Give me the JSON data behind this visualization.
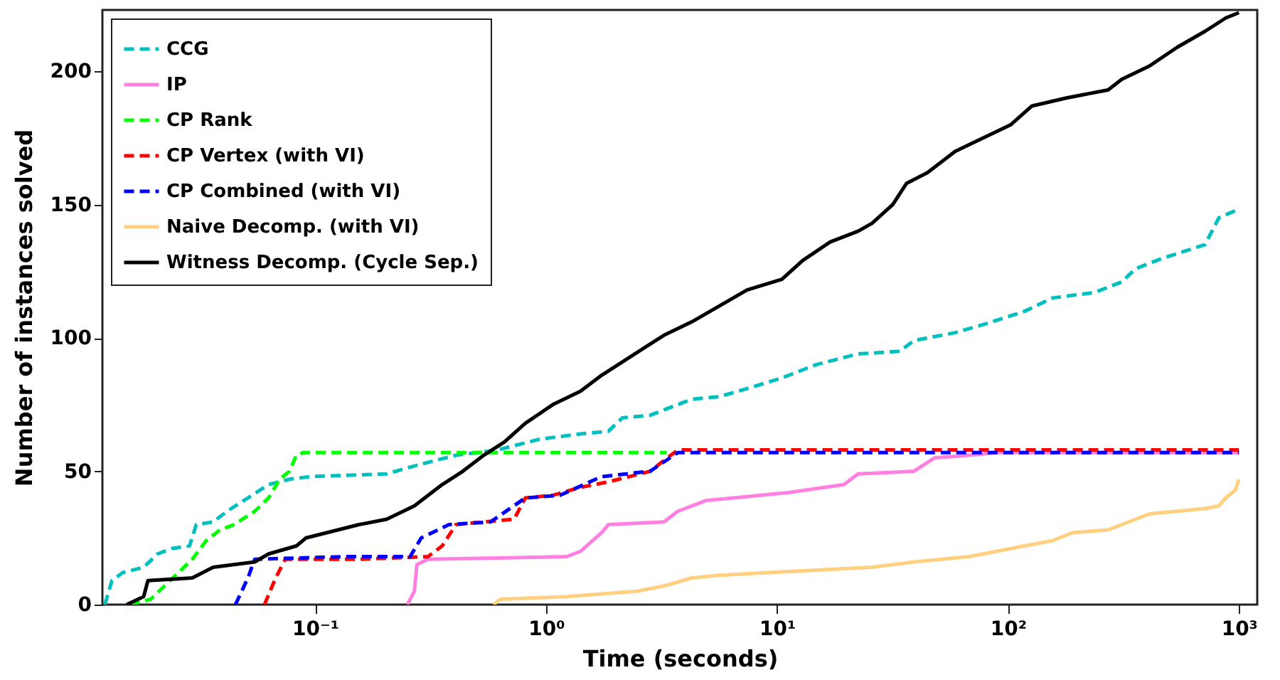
{
  "chart_data": {
    "type": "line",
    "xlabel": "Time (seconds)",
    "ylabel": "Number of instances solved",
    "log": "x",
    "xlim": [
      0.012,
      1200
    ],
    "ylim": [
      0,
      223
    ],
    "xticks": [
      {
        "value": 0.1,
        "label": "10⁻¹"
      },
      {
        "value": 1,
        "label": "10⁰"
      },
      {
        "value": 10,
        "label": "10¹"
      },
      {
        "value": 100,
        "label": "10²"
      },
      {
        "value": 1000,
        "label": "10³"
      }
    ],
    "yticks": [
      0,
      50,
      100,
      150,
      200
    ],
    "grid": false,
    "legend": "top left",
    "marker": "none",
    "series": [
      {
        "name": "CCG",
        "color": "#00bfbf",
        "line_style": "dashed",
        "x": [
          0.0123,
          0.0132,
          0.0147,
          0.0181,
          0.0208,
          0.0239,
          0.0286,
          0.0306,
          0.0362,
          0.0416,
          0.0512,
          0.0629,
          0.0774,
          0.0953,
          0.204,
          0.269,
          0.407,
          0.616,
          0.933,
          1.41,
          1.86,
          2.14,
          2.82,
          4.27,
          5.63,
          7.42,
          10.5,
          14.8,
          22.4,
          34.0,
          39.1,
          59.1,
          78.0,
          118,
          156,
          236,
          311,
          357,
          471,
          713,
          818,
          980
        ],
        "values": [
          0,
          9,
          12,
          14,
          19,
          21,
          22,
          30,
          31,
          35,
          40,
          45,
          47,
          48,
          49,
          52,
          56,
          58,
          62,
          64,
          65,
          70,
          71,
          77,
          78,
          81,
          85,
          90,
          94,
          95,
          99,
          102,
          105,
          110,
          115,
          117,
          121,
          126,
          130,
          135,
          145,
          148
        ]
      },
      {
        "name": "IP",
        "color": "#ff80e0",
        "line_style": "solid",
        "x": [
          0.251,
          0.269,
          0.276,
          0.308,
          1.23,
          1.41,
          1.74,
          1.86,
          3.24,
          3.72,
          4.91,
          11.2,
          19.5,
          22.4,
          39.1,
          48.0,
          67.9,
          89.5,
          1000
        ],
        "values": [
          0,
          5,
          15,
          17,
          18,
          20,
          27,
          30,
          31,
          35,
          39,
          42,
          45,
          49,
          50,
          55,
          56,
          57,
          57
        ]
      },
      {
        "name": "CP Rank",
        "color": "#00ff00",
        "line_style": "dashed",
        "x": [
          0.0158,
          0.0194,
          0.0223,
          0.0256,
          0.0294,
          0.0338,
          0.0387,
          0.0446,
          0.0548,
          0.0629,
          0.0703,
          0.0774,
          0.083,
          0.0889,
          3.33
        ],
        "values": [
          0,
          2,
          7,
          12,
          17,
          24,
          28,
          30,
          35,
          40,
          47,
          50,
          56,
          57,
          57
        ]
      },
      {
        "name": "CP Vertex (with VI)",
        "color": "#ff0000",
        "line_style": "dashed",
        "x": [
          0.0604,
          0.0675,
          0.0743,
          0.155,
          0.308,
          0.355,
          0.407,
          0.537,
          0.727,
          0.813,
          1.07,
          1.41,
          1.86,
          2.82,
          3.47,
          3.72,
          1000
        ],
        "values": [
          0,
          10,
          17,
          17,
          18,
          22,
          30,
          31,
          32,
          40,
          41,
          44,
          46,
          50,
          56,
          58,
          58
        ]
      },
      {
        "name": "CP Combined (with VI)",
        "color": "#0000ff",
        "line_style": "dashed",
        "x": [
          0.0452,
          0.0512,
          0.0548,
          0.135,
          0.258,
          0.288,
          0.38,
          0.575,
          0.813,
          1.15,
          1.74,
          2.82,
          3.72,
          1000
        ],
        "values": [
          0,
          10,
          17,
          18,
          18,
          25,
          30,
          31,
          40,
          41,
          48,
          50,
          57,
          57
        ]
      },
      {
        "name": "Naive Decomp. (with VI)",
        "color": "#ffd080",
        "line_style": "solid",
        "x": [
          0.591,
          0.634,
          1.23,
          2.46,
          3.24,
          4.27,
          5.63,
          9.14,
          25.8,
          39.1,
          67.9,
          89.5,
          118,
          156,
          191,
          271,
          311,
          410,
          713,
          818,
          877,
          966,
          1000
        ],
        "values": [
          0,
          2,
          3,
          5,
          7,
          10,
          11,
          12,
          14,
          16,
          18,
          20,
          22,
          24,
          27,
          28,
          30,
          34,
          36,
          37,
          40,
          43,
          47
        ]
      },
      {
        "name": "Witness Decomp. (Cycle Sep.)",
        "color": "#000000",
        "line_style": "solid",
        "x": [
          0.0153,
          0.0181,
          0.0189,
          0.0294,
          0.0362,
          0.0548,
          0.0629,
          0.083,
          0.0914,
          0.155,
          0.204,
          0.269,
          0.355,
          0.436,
          0.537,
          0.66,
          0.813,
          1.07,
          1.41,
          1.74,
          2.14,
          2.63,
          3.24,
          4.27,
          5.63,
          7.42,
          10.5,
          12.9,
          17.0,
          22.4,
          25.8,
          31.7,
          36.4,
          44.8,
          59.1,
          78.0,
          103,
          127,
          179,
          271,
          311,
          410,
          540,
          713,
          877,
          1000
        ],
        "values": [
          0,
          3,
          9,
          10,
          14,
          16,
          19,
          22,
          25,
          30,
          32,
          37,
          45,
          50,
          56,
          61,
          68,
          75,
          80,
          86,
          91,
          96,
          101,
          106,
          112,
          118,
          122,
          129,
          136,
          140,
          143,
          150,
          158,
          162,
          170,
          175,
          180,
          187,
          190,
          193,
          197,
          202,
          209,
          215,
          220,
          222
        ]
      }
    ]
  }
}
